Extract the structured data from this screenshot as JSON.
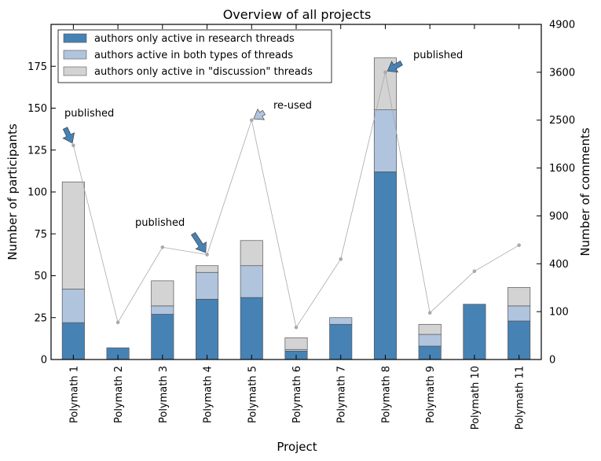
{
  "chart_data": {
    "type": "bar",
    "title": "Overview of all projects",
    "xlabel": "Project",
    "ylabel": "Number of participants",
    "y2label": "Number of comments",
    "ylim": [
      0,
      200
    ],
    "yticks": [
      0,
      25,
      50,
      75,
      100,
      125,
      150,
      175
    ],
    "y2_scale": "sqrt",
    "y2lim": [
      0,
      4900
    ],
    "y2ticks": [
      0,
      100,
      400,
      900,
      1600,
      2500,
      3600,
      4900
    ],
    "legend_position": "top-left",
    "categories": [
      "Polymath 1",
      "Polymath 2",
      "Polymath 3",
      "Polymath 4",
      "Polymath 5",
      "Polymath 6",
      "Polymath 7",
      "Polymath 8",
      "Polymath 9",
      "Polymath 10",
      "Polymath 11"
    ],
    "series": [
      {
        "name": "authors only active in research threads",
        "color": "#4682b4",
        "values": [
          22,
          7,
          27,
          36,
          37,
          5,
          21,
          112,
          8,
          33,
          23
        ]
      },
      {
        "name": "authors active in both types of threads",
        "color": "#b0c4de",
        "values": [
          20,
          0,
          5,
          16,
          19,
          1,
          4,
          37,
          7,
          0,
          9
        ]
      },
      {
        "name": "authors only active in \"discussion\" threads",
        "color": "#d3d3d3",
        "values": [
          64,
          0,
          15,
          4,
          15,
          7,
          0,
          31,
          6,
          0,
          11
        ]
      }
    ],
    "comments": {
      "color": "#a9a9a9",
      "values": [
        2000,
        60,
        550,
        480,
        2500,
        45,
        440,
        3600,
        95,
        340,
        570
      ]
    },
    "annotations": [
      {
        "text": "published",
        "category": 0,
        "arrow_color": "#4682b4"
      },
      {
        "text": "published",
        "category": 3,
        "arrow_color": "#4682b4"
      },
      {
        "text": "re-used",
        "category": 4,
        "arrow_color": "#b0c4de"
      },
      {
        "text": "published",
        "category": 7,
        "arrow_color": "#4682b4"
      }
    ]
  }
}
